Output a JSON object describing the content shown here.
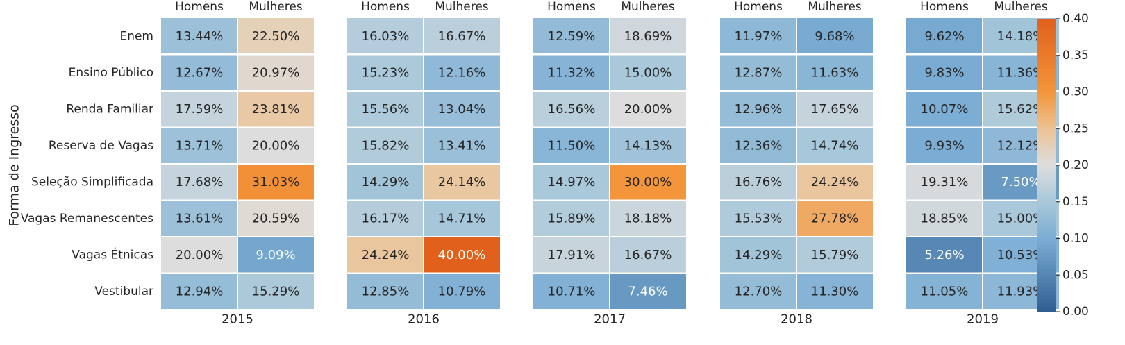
{
  "chart_data": {
    "type": "heatmap",
    "ylabel": "Forma de Ingresso",
    "row_labels": [
      "Enem",
      "Ensino Público",
      "Renda Familiar",
      "Reserva de Vagas",
      "Seleção Simplificada",
      "Vagas Remanescentes",
      "Vagas Étnicas",
      "Vestibular"
    ],
    "col_labels": [
      "Homens",
      "Mulheres"
    ],
    "colorbar": {
      "range": [
        0.0,
        0.4
      ],
      "ticks": [
        "0.00",
        "0.05",
        "0.10",
        "0.15",
        "0.20",
        "0.25",
        "0.30",
        "0.35",
        "0.40"
      ],
      "colors": {
        "low": "#2f5f92",
        "mid": "#dddddd",
        "high": "#e0601c"
      }
    },
    "panels": [
      {
        "year": "2015",
        "values": [
          [
            0.1344,
            0.225
          ],
          [
            0.1267,
            0.2097
          ],
          [
            0.1759,
            0.2381
          ],
          [
            0.1371,
            0.2
          ],
          [
            0.1768,
            0.3103
          ],
          [
            0.1361,
            0.2059
          ],
          [
            0.2,
            0.0909
          ],
          [
            0.1294,
            0.1529
          ]
        ],
        "labels": [
          [
            "13.44%",
            "22.50%"
          ],
          [
            "12.67%",
            "20.97%"
          ],
          [
            "17.59%",
            "23.81%"
          ],
          [
            "13.71%",
            "20.00%"
          ],
          [
            "17.68%",
            "31.03%"
          ],
          [
            "13.61%",
            "20.59%"
          ],
          [
            "20.00%",
            "9.09%"
          ],
          [
            "12.94%",
            "15.29%"
          ]
        ]
      },
      {
        "year": "2016",
        "values": [
          [
            0.1603,
            0.1667
          ],
          [
            0.1523,
            0.1216
          ],
          [
            0.1556,
            0.1304
          ],
          [
            0.1582,
            0.1341
          ],
          [
            0.1429,
            0.2414
          ],
          [
            0.1617,
            0.1471
          ],
          [
            0.2424,
            0.4
          ],
          [
            0.1285,
            0.1079
          ]
        ],
        "labels": [
          [
            "16.03%",
            "16.67%"
          ],
          [
            "15.23%",
            "12.16%"
          ],
          [
            "15.56%",
            "13.04%"
          ],
          [
            "15.82%",
            "13.41%"
          ],
          [
            "14.29%",
            "24.14%"
          ],
          [
            "16.17%",
            "14.71%"
          ],
          [
            "24.24%",
            "40.00%"
          ],
          [
            "12.85%",
            "10.79%"
          ]
        ]
      },
      {
        "year": "2017",
        "values": [
          [
            0.1259,
            0.1869
          ],
          [
            0.1132,
            0.15
          ],
          [
            0.1656,
            0.2
          ],
          [
            0.115,
            0.1413
          ],
          [
            0.1497,
            0.3
          ],
          [
            0.1589,
            0.1818
          ],
          [
            0.1791,
            0.1667
          ],
          [
            0.1071,
            0.0746
          ]
        ],
        "labels": [
          [
            "12.59%",
            "18.69%"
          ],
          [
            "11.32%",
            "15.00%"
          ],
          [
            "16.56%",
            "20.00%"
          ],
          [
            "11.50%",
            "14.13%"
          ],
          [
            "14.97%",
            "30.00%"
          ],
          [
            "15.89%",
            "18.18%"
          ],
          [
            "17.91%",
            "16.67%"
          ],
          [
            "10.71%",
            "7.46%"
          ]
        ]
      },
      {
        "year": "2018",
        "values": [
          [
            0.1197,
            0.0968
          ],
          [
            0.1287,
            0.1163
          ],
          [
            0.1296,
            0.1765
          ],
          [
            0.1236,
            0.1474
          ],
          [
            0.1676,
            0.2424
          ],
          [
            0.1553,
            0.2778
          ],
          [
            0.1429,
            0.1579
          ],
          [
            0.127,
            0.113
          ]
        ],
        "labels": [
          [
            "11.97%",
            "9.68%"
          ],
          [
            "12.87%",
            "11.63%"
          ],
          [
            "12.96%",
            "17.65%"
          ],
          [
            "12.36%",
            "14.74%"
          ],
          [
            "16.76%",
            "24.24%"
          ],
          [
            "15.53%",
            "27.78%"
          ],
          [
            "14.29%",
            "15.79%"
          ],
          [
            "12.70%",
            "11.30%"
          ]
        ]
      },
      {
        "year": "2019",
        "values": [
          [
            0.0962,
            0.1418
          ],
          [
            0.0983,
            0.1136
          ],
          [
            0.1007,
            0.1562
          ],
          [
            0.0993,
            0.1212
          ],
          [
            0.1931,
            0.075
          ],
          [
            0.1885,
            0.15
          ],
          [
            0.0526,
            0.1053
          ],
          [
            0.1105,
            0.1193
          ]
        ],
        "labels": [
          [
            "9.62%",
            "14.18%"
          ],
          [
            "9.83%",
            "11.36%"
          ],
          [
            "10.07%",
            "15.62%"
          ],
          [
            "9.93%",
            "12.12%"
          ],
          [
            "19.31%",
            "7.50%"
          ],
          [
            "18.85%",
            "15.00%"
          ],
          [
            "5.26%",
            "10.53%"
          ],
          [
            "11.05%",
            "11.93%"
          ]
        ]
      }
    ]
  }
}
